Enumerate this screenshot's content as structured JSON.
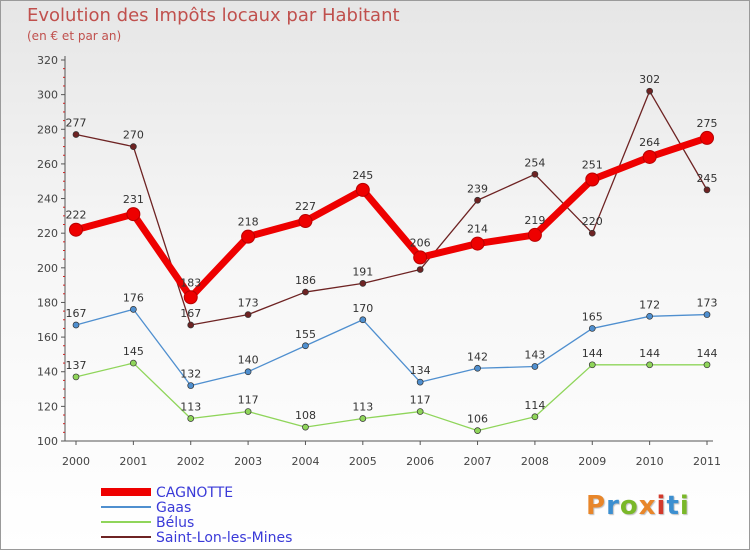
{
  "header": {
    "title": "Evolution des Impôts locaux par Habitant",
    "subtitle": "(en € et par an)"
  },
  "logo": {
    "text": "Proxiti",
    "colors": [
      "#e8862a",
      "#3c8fd0",
      "#7ab829",
      "#e8862a",
      "#d33a2c",
      "#3c8fd0",
      "#7ab829"
    ]
  },
  "chart_data": {
    "type": "line",
    "x": [
      "2000",
      "2001",
      "2002",
      "2003",
      "2004",
      "2005",
      "2006",
      "2007",
      "2008",
      "2009",
      "2010",
      "2011"
    ],
    "ylim": [
      100,
      320
    ],
    "yticks": [
      "100",
      "120",
      "140",
      "160",
      "180",
      "200",
      "220",
      "240",
      "260",
      "280",
      "300",
      "320"
    ],
    "grid": false,
    "legend_position": "bottom-left",
    "series": [
      {
        "name": "CAGNOTTE",
        "color": "#ee0000",
        "values": [
          222,
          231,
          183,
          218,
          227,
          245,
          206,
          214,
          219,
          251,
          264,
          275
        ]
      },
      {
        "name": "Gaas",
        "color": "#4f8fcf",
        "values": [
          167,
          176,
          132,
          140,
          155,
          170,
          134,
          142,
          143,
          165,
          172,
          173
        ]
      },
      {
        "name": "Bélus",
        "color": "#8fd55a",
        "values": [
          137,
          145,
          113,
          117,
          108,
          113,
          117,
          106,
          114,
          144,
          144,
          144
        ]
      },
      {
        "name": "Saint-Lon-les-Mines",
        "color": "#6e2323",
        "values": [
          277,
          270,
          167,
          173,
          186,
          191,
          199,
          239,
          254,
          220,
          302,
          245
        ]
      }
    ],
    "data_labels": [
      [
        "222",
        "231",
        "183",
        "218",
        "227",
        "245",
        "206",
        "214",
        "219",
        "251",
        "264",
        "275"
      ],
      [
        "167",
        "176",
        "132",
        "140",
        "155",
        "170",
        "134",
        "142",
        "143",
        "165",
        "172",
        "173"
      ],
      [
        "137",
        "145",
        "113",
        "117",
        "108",
        "113",
        "117",
        "106",
        "114",
        "144",
        "144",
        "144"
      ],
      [
        "277",
        "270",
        "167",
        "173",
        "186",
        "191",
        "",
        "239",
        "254",
        "220",
        "302",
        "245"
      ]
    ]
  }
}
